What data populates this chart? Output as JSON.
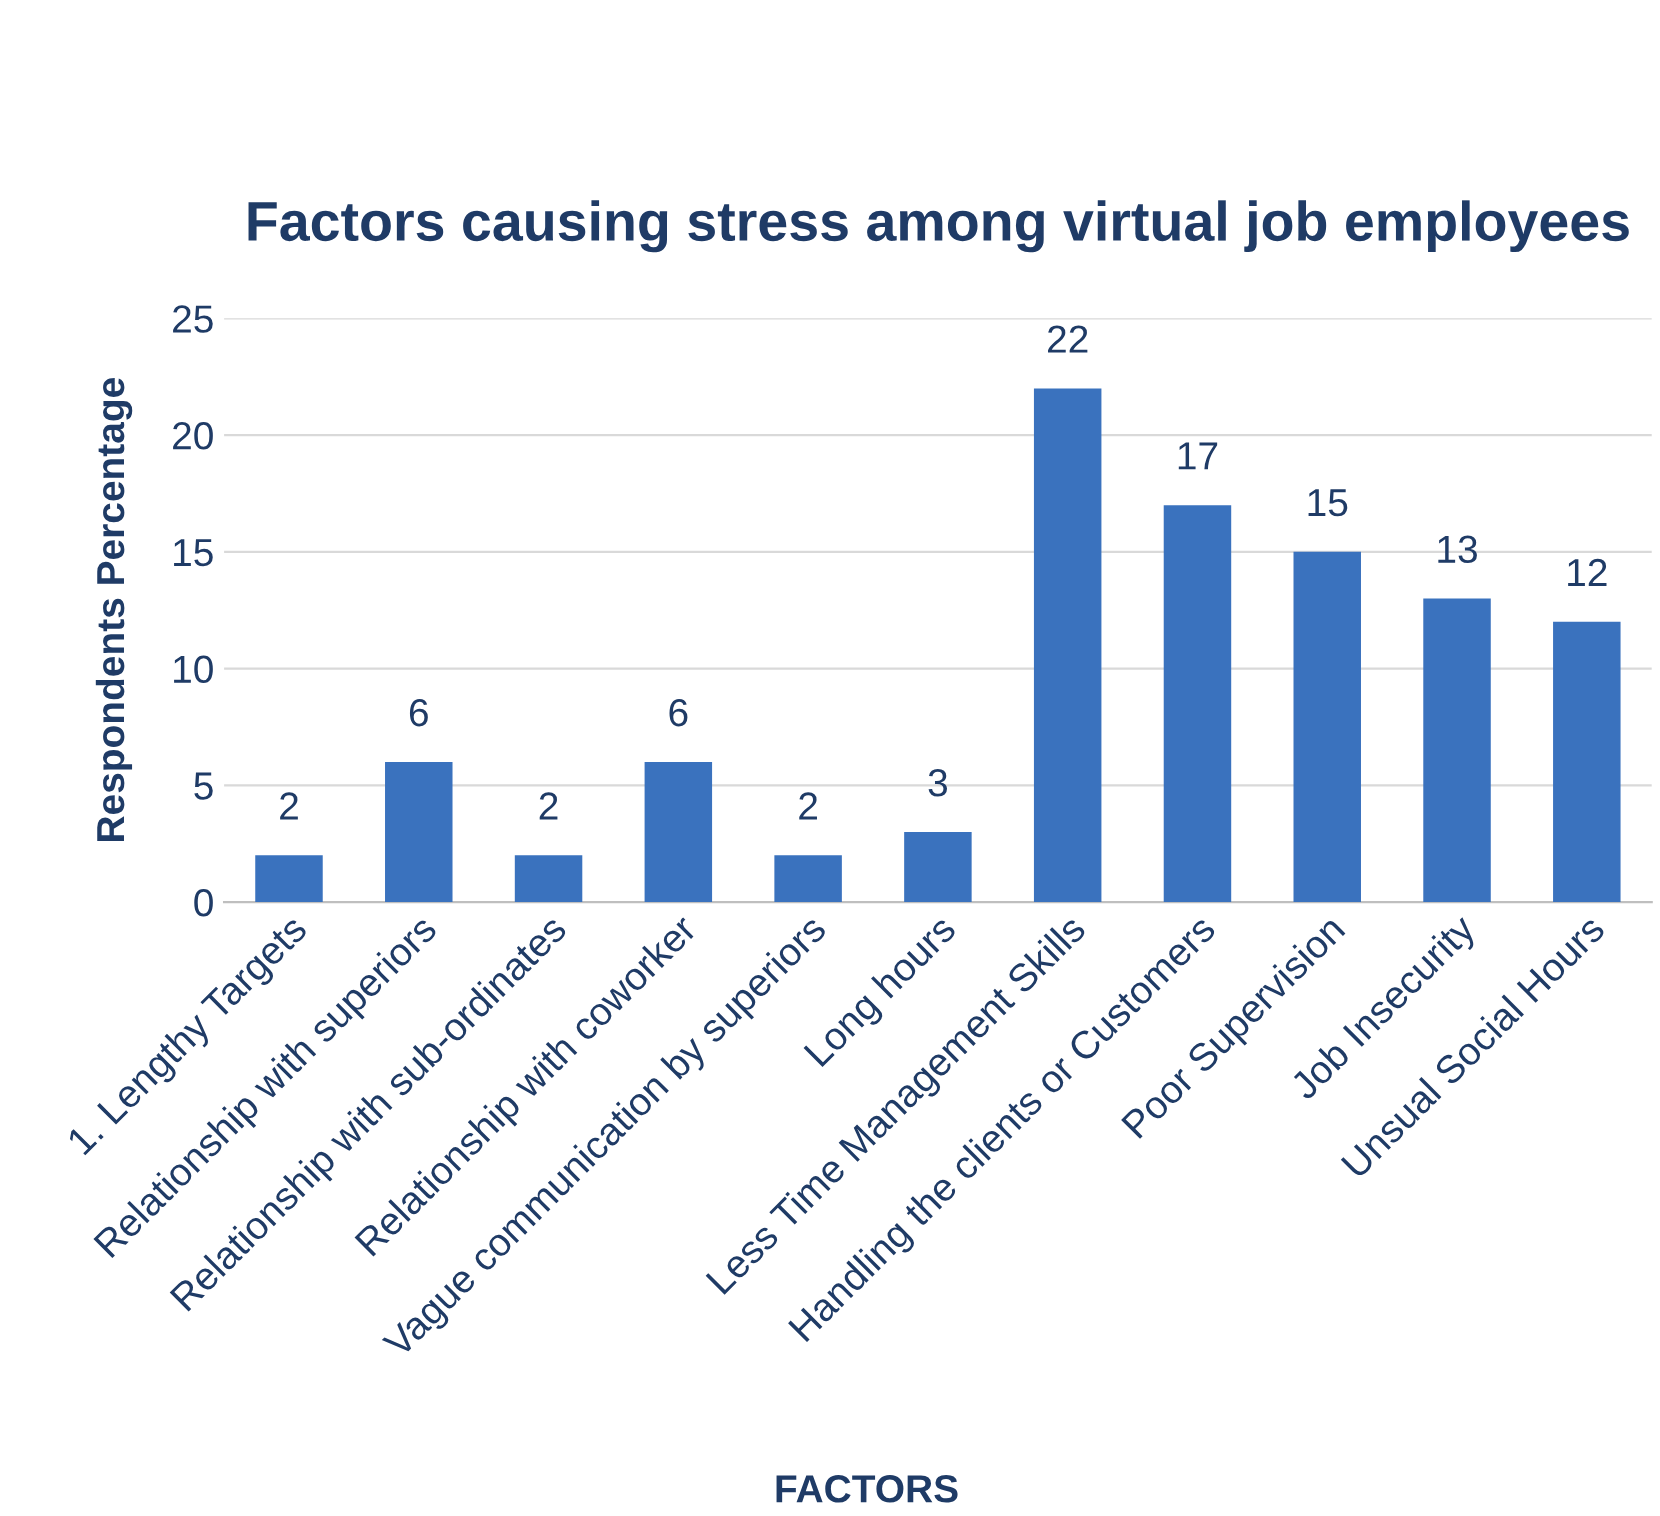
{
  "chart_data": {
    "type": "bar",
    "title": "Factors causing stress among virtual job employees",
    "xlabel": "FACTORS",
    "ylabel": "Respondents Percentage",
    "categories": [
      "1. Lengthy Targets",
      "Relationship with superiors",
      "Relationship with sub-ordinates",
      "Relationship with coworker",
      "Vague communication by superiors",
      "Long hours",
      "Less Time Management Skills",
      "Handling the clients or Customers",
      "Poor Supervision",
      "Job Insecurity",
      "Unsual Social Hours"
    ],
    "values": [
      2,
      6,
      2,
      6,
      2,
      3,
      22,
      17,
      15,
      13,
      12
    ],
    "color": "#3a72be",
    "ylim": [
      0,
      25
    ],
    "yticks": [
      0,
      5,
      10,
      15,
      20,
      25
    ],
    "grid": "y",
    "data_labels": true
  }
}
